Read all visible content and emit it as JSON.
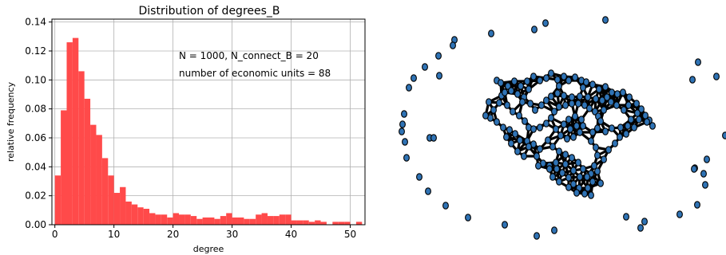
{
  "chart_data": [
    {
      "type": "bar",
      "title": "Distribution of degrees_B",
      "xlabel": "degree",
      "ylabel": "relative frequency",
      "xlim": [
        -0.5,
        52.5
      ],
      "ylim": [
        0,
        0.142
      ],
      "xticks": [
        0,
        10,
        20,
        30,
        40,
        50
      ],
      "yticks": [
        0.0,
        0.02,
        0.04,
        0.06,
        0.08,
        0.1,
        0.12,
        0.14
      ],
      "ytick_labels": [
        "0.00",
        "0.02",
        "0.04",
        "0.06",
        "0.08",
        "0.10",
        "0.12",
        "0.14"
      ],
      "grid": true,
      "bar_color": "#ff4a4a",
      "bin_width": 1,
      "bin_starts": [
        0,
        1,
        2,
        3,
        4,
        5,
        6,
        7,
        8,
        9,
        10,
        11,
        12,
        13,
        14,
        15,
        16,
        17,
        18,
        19,
        20,
        21,
        22,
        23,
        24,
        25,
        26,
        27,
        28,
        29,
        30,
        31,
        32,
        33,
        34,
        35,
        36,
        37,
        38,
        39,
        40,
        41,
        42,
        43,
        44,
        45,
        46,
        47,
        48,
        49,
        50,
        51
      ],
      "values": [
        0.034,
        0.079,
        0.126,
        0.129,
        0.106,
        0.087,
        0.069,
        0.062,
        0.046,
        0.034,
        0.022,
        0.026,
        0.016,
        0.014,
        0.012,
        0.011,
        0.008,
        0.007,
        0.007,
        0.005,
        0.008,
        0.007,
        0.007,
        0.006,
        0.004,
        0.005,
        0.005,
        0.004,
        0.006,
        0.008,
        0.005,
        0.005,
        0.004,
        0.004,
        0.007,
        0.008,
        0.006,
        0.006,
        0.007,
        0.007,
        0.003,
        0.003,
        0.003,
        0.002,
        0.003,
        0.002,
        0.0,
        0.002,
        0.002,
        0.002,
        0.0,
        0.002
      ],
      "annotations": [
        "N = 1000, N_connect_B = 20",
        "number of economic units = 88"
      ]
    },
    {
      "type": "scatter",
      "description_free": true,
      "node_color": "#2f73b5",
      "edge_color": "#000000",
      "outer_nodes": [
        [
          615,
          42
        ],
        [
          669,
          37
        ],
        [
          683,
          29
        ],
        [
          758,
          25
        ],
        [
          569,
          50
        ],
        [
          567,
          57
        ],
        [
          549,
          70
        ],
        [
          532,
          84
        ],
        [
          550,
          95
        ],
        [
          518,
          98
        ],
        [
          512,
          110
        ],
        [
          506,
          143
        ],
        [
          504,
          156
        ],
        [
          503,
          165
        ],
        [
          507,
          178
        ],
        [
          509,
          198
        ],
        [
          525,
          222
        ],
        [
          536,
          240
        ],
        [
          558,
          258
        ],
        [
          586,
          273
        ],
        [
          632,
          282
        ],
        [
          672,
          296
        ],
        [
          694,
          289
        ],
        [
          784,
          272
        ],
        [
          802,
          286
        ],
        [
          807,
          278
        ],
        [
          851,
          269
        ],
        [
          873,
          257
        ],
        [
          883,
          232
        ],
        [
          881,
          218
        ],
        [
          870,
          211
        ],
        [
          869,
          212
        ],
        [
          885,
          200
        ],
        [
          897,
          96
        ],
        [
          874,
          78
        ],
        [
          867,
          100
        ],
        [
          538,
          173
        ],
        [
          543,
          173
        ],
        [
          908,
          170
        ]
      ],
      "core_nodes": [
        [
          622,
          101
        ],
        [
          627,
          104
        ],
        [
          636,
          108
        ],
        [
          644,
          102
        ],
        [
          652,
          108
        ],
        [
          660,
          102
        ],
        [
          668,
          96
        ],
        [
          676,
          101
        ],
        [
          684,
          98
        ],
        [
          690,
          92
        ],
        [
          698,
          100
        ],
        [
          706,
          96
        ],
        [
          712,
          101
        ],
        [
          720,
          97
        ],
        [
          728,
          101
        ],
        [
          734,
          103
        ],
        [
          742,
          106
        ],
        [
          750,
          112
        ],
        [
          758,
          109
        ],
        [
          766,
          116
        ],
        [
          773,
          118
        ],
        [
          780,
          116
        ],
        [
          788,
          122
        ],
        [
          797,
          130
        ],
        [
          803,
          137
        ],
        [
          808,
          145
        ],
        [
          813,
          151
        ],
        [
          817,
          158
        ],
        [
          810,
          153
        ],
        [
          800,
          150
        ],
        [
          794,
          160
        ],
        [
          786,
          158
        ],
        [
          777,
          160
        ],
        [
          766,
          161
        ],
        [
          758,
          165
        ],
        [
          748,
          161
        ],
        [
          742,
          166
        ],
        [
          740,
          177
        ],
        [
          746,
          185
        ],
        [
          748,
          195
        ],
        [
          744,
          208
        ],
        [
          740,
          218
        ],
        [
          742,
          228
        ],
        [
          736,
          236
        ],
        [
          740,
          245
        ],
        [
          732,
          243
        ],
        [
          725,
          236
        ],
        [
          718,
          231
        ],
        [
          712,
          223
        ],
        [
          704,
          217
        ],
        [
          697,
          212
        ],
        [
          688,
          208
        ],
        [
          680,
          205
        ],
        [
          674,
          208
        ],
        [
          672,
          196
        ],
        [
          676,
          187
        ],
        [
          668,
          181
        ],
        [
          660,
          177
        ],
        [
          651,
          176
        ],
        [
          645,
          168
        ],
        [
          638,
          163
        ],
        [
          630,
          160
        ],
        [
          622,
          153
        ],
        [
          614,
          148
        ],
        [
          608,
          145
        ],
        [
          618,
          138
        ],
        [
          625,
          129
        ],
        [
          628,
          120
        ],
        [
          612,
          128
        ],
        [
          635,
          132
        ],
        [
          642,
          140
        ],
        [
          650,
          145
        ],
        [
          657,
          152
        ],
        [
          662,
          160
        ],
        [
          668,
          162
        ],
        [
          676,
          160
        ],
        [
          684,
          155
        ],
        [
          690,
          148
        ],
        [
          694,
          140
        ],
        [
          700,
          134
        ],
        [
          708,
          132
        ],
        [
          716,
          130
        ],
        [
          724,
          130
        ],
        [
          732,
          132
        ],
        [
          738,
          136
        ],
        [
          745,
          140
        ],
        [
          749,
          146
        ],
        [
          752,
          152
        ],
        [
          756,
          138
        ],
        [
          765,
          128
        ],
        [
          772,
          132
        ],
        [
          781,
          138
        ],
        [
          787,
          132
        ],
        [
          754,
          126
        ],
        [
          746,
          124
        ],
        [
          736,
          122
        ],
        [
          726,
          121
        ],
        [
          716,
          122
        ],
        [
          706,
          120
        ],
        [
          698,
          117
        ],
        [
          690,
          121
        ],
        [
          684,
          126
        ],
        [
          678,
          132
        ],
        [
          670,
          138
        ],
        [
          664,
          130
        ],
        [
          656,
          122
        ],
        [
          648,
          118
        ],
        [
          640,
          114
        ],
        [
          632,
          116
        ],
        [
          696,
          162
        ],
        [
          702,
          170
        ],
        [
          710,
          174
        ],
        [
          718,
          172
        ],
        [
          726,
          166
        ],
        [
          730,
          158
        ],
        [
          728,
          150
        ],
        [
          720,
          146
        ],
        [
          712,
          150
        ],
        [
          706,
          156
        ],
        [
          714,
          162
        ],
        [
          722,
          158
        ],
        [
          686,
          176
        ],
        [
          692,
          184
        ],
        [
          700,
          190
        ],
        [
          708,
          194
        ],
        [
          716,
          198
        ],
        [
          724,
          204
        ],
        [
          730,
          212
        ],
        [
          726,
          222
        ],
        [
          718,
          214
        ],
        [
          708,
          206
        ],
        [
          696,
          204
        ],
        [
          688,
          212
        ],
        [
          692,
          222
        ],
        [
          700,
          228
        ],
        [
          712,
          235
        ],
        [
          722,
          242
        ],
        [
          735,
          222
        ],
        [
          748,
          215
        ],
        [
          752,
          230
        ],
        [
          756,
          200
        ],
        [
          762,
          188
        ],
        [
          770,
          180
        ],
        [
          776,
          172
        ],
        [
          784,
          168
        ],
        [
          648,
          190
        ],
        [
          656,
          196
        ],
        [
          662,
          184
        ],
        [
          640,
          180
        ],
        [
          634,
          172
        ],
        [
          654,
          128
        ],
        [
          662,
          112
        ],
        [
          700,
          108
        ],
        [
          730,
          110
        ],
        [
          760,
          122
        ],
        [
          790,
          150
        ],
        [
          798,
          142
        ]
      ]
    }
  ]
}
